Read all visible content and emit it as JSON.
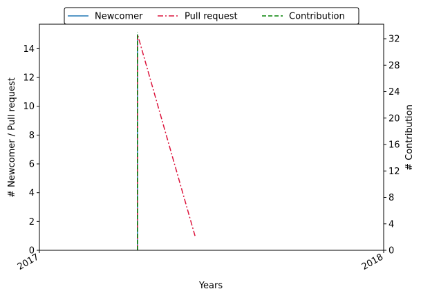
{
  "chart_data": {
    "type": "line",
    "xlabel": "Years",
    "ylabel_left": "# Newcomer / Pull request",
    "ylabel_right": "# Contribution",
    "x_domain": [
      "2017-01-01",
      "2018-01-01"
    ],
    "x_ticks": [
      "2017",
      "2018"
    ],
    "ylim_left": [
      0,
      15.7
    ],
    "yticks_left": [
      0,
      2,
      4,
      6,
      8,
      10,
      12,
      14
    ],
    "ylim_right": [
      0,
      34.2
    ],
    "yticks_right": [
      0,
      4,
      8,
      12,
      16,
      20,
      24,
      28,
      32
    ],
    "legend_position": "top-center",
    "grid": false,
    "series": [
      {
        "name": "Newcomer",
        "axis": "left",
        "style": "solid",
        "color": "#1f77b4",
        "x": [
          "2017-04-15",
          "2017-04-15"
        ],
        "y": [
          0,
          15
        ]
      },
      {
        "name": "Pull request",
        "axis": "left",
        "style": "dashdot",
        "color": "#dc143c",
        "x": [
          "2017-04-15",
          "2017-04-15",
          "2017-06-15"
        ],
        "y": [
          0,
          15,
          1
        ]
      },
      {
        "name": "Contribution",
        "axis": "right",
        "style": "dashed",
        "color": "#008000",
        "x": [
          "2017-04-15",
          "2017-04-15"
        ],
        "y": [
          0,
          33
        ]
      }
    ]
  }
}
